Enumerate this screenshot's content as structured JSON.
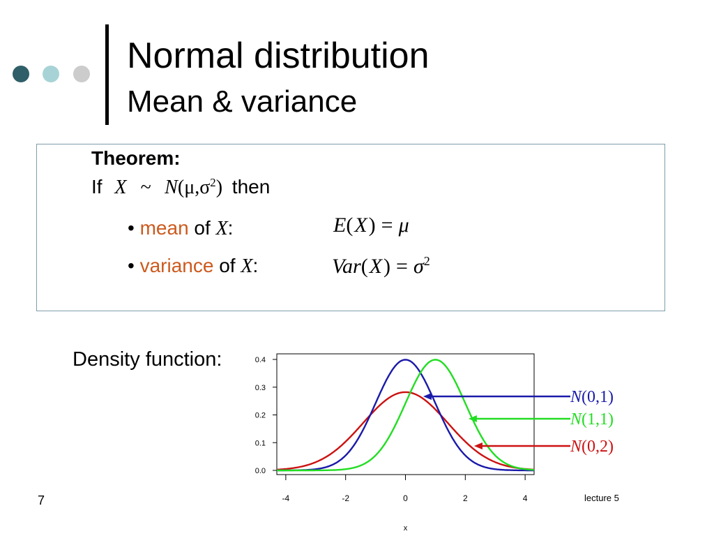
{
  "colors": {
    "dot1": "#2f5f68",
    "dot2": "#a7d3d6",
    "dot3": "#cccccc"
  },
  "title": "Normal distribution",
  "subtitle": "Mean & variance",
  "theorem": {
    "heading": "Theorem:",
    "if_word": "If",
    "rv": "X",
    "tilde": "~",
    "dist_symbol": "N",
    "dist_open": "(",
    "mu": "μ",
    "comma": ",",
    "sigma": "σ",
    "sq": "2",
    "dist_close": ")",
    "then_word": "then",
    "bullets": [
      {
        "term": "mean",
        "of": "of",
        "var": "X",
        "colon": ":",
        "formula": {
          "lhs": "E",
          "lp": "(",
          "arg": "X",
          "rp": ")",
          "eq": "=",
          "rhs": "μ"
        }
      },
      {
        "term": "variance",
        "of": "of",
        "var": "X",
        "colon": ":",
        "formula": {
          "lhs": "Var",
          "lp": "(",
          "arg": "X",
          "rp": ")",
          "eq": "=",
          "rhs": "σ",
          "exp": "2"
        }
      }
    ]
  },
  "density_label": "Density function:",
  "page_number": "7",
  "footer": "lecture 5",
  "chart_data": {
    "type": "line",
    "xlabel": "x",
    "ylabel": "",
    "xlim": [
      -4.3,
      4.3
    ],
    "ylim": [
      0,
      0.4
    ],
    "x_ticks": [
      "-4",
      "-2",
      "0",
      "2",
      "4"
    ],
    "y_ticks": [
      "0.0",
      "0.1",
      "0.2",
      "0.3",
      "0.4"
    ],
    "grid": false,
    "series": [
      {
        "name": "N(0,1)",
        "mean": 0,
        "variance": 1,
        "color": "#1a1aaa"
      },
      {
        "name": "N(1,1)",
        "mean": 1,
        "variance": 1,
        "color": "#22dd22"
      },
      {
        "name": "N(0,2)",
        "mean": 0,
        "variance": 2,
        "color": "#cc1111"
      }
    ],
    "annotations": [
      {
        "series": 0,
        "dist": "N",
        "params": "(0,1)",
        "color": "#1a1aaa"
      },
      {
        "series": 1,
        "dist": "N",
        "params": "(1,1)",
        "color": "#22dd22"
      },
      {
        "series": 2,
        "dist": "N",
        "params": "(0,2)",
        "color": "#cc1111"
      }
    ]
  }
}
